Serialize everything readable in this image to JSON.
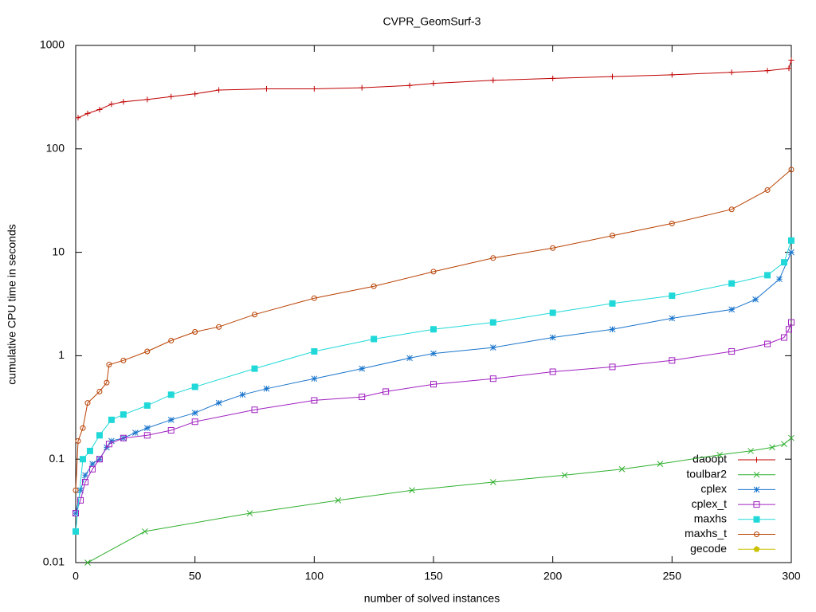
{
  "chart_data": {
    "type": "line",
    "title": "CVPR_GeomSurf-3",
    "xlabel": "number of solved instances",
    "ylabel": "cumulative CPU time in seconds",
    "xlim": [
      0,
      300
    ],
    "xticks": [
      0,
      50,
      100,
      150,
      200,
      250,
      300
    ],
    "ylim": [
      0.01,
      1000
    ],
    "yticks": [
      1000,
      100,
      10,
      1,
      0.1,
      0.01
    ],
    "log_y": true,
    "legend": "lower right",
    "series": [
      {
        "name": "daoopt",
        "color": "#c00000",
        "marker": "plus",
        "x": [
          1,
          5,
          10,
          15,
          20,
          30,
          40,
          50,
          60,
          80,
          100,
          120,
          140,
          150,
          175,
          200,
          225,
          250,
          275,
          290,
          299,
          300
        ],
        "values": [
          200,
          220,
          240,
          270,
          285,
          300,
          320,
          340,
          370,
          380,
          380,
          390,
          410,
          430,
          460,
          480,
          500,
          520,
          550,
          570,
          600,
          720
        ]
      },
      {
        "name": "toulbar2",
        "color": "#30b030",
        "marker": "cross",
        "x": [
          5,
          29,
          73,
          110,
          141,
          175,
          205,
          229,
          245,
          270,
          283,
          292,
          297,
          300
        ],
        "values": [
          0.01,
          0.02,
          0.03,
          0.04,
          0.05,
          0.06,
          0.07,
          0.08,
          0.09,
          0.11,
          0.12,
          0.13,
          0.14,
          0.16
        ]
      },
      {
        "name": "cplex",
        "color": "#1a75cc",
        "marker": "star",
        "x": [
          0,
          2,
          4,
          7,
          10,
          13,
          15,
          20,
          25,
          30,
          40,
          50,
          60,
          70,
          80,
          100,
          120,
          140,
          150,
          175,
          200,
          225,
          250,
          275,
          285,
          295,
          300
        ],
        "values": [
          0.03,
          0.05,
          0.07,
          0.09,
          0.1,
          0.13,
          0.15,
          0.16,
          0.18,
          0.2,
          0.24,
          0.28,
          0.35,
          0.42,
          0.48,
          0.6,
          0.75,
          0.95,
          1.05,
          1.2,
          1.5,
          1.8,
          2.3,
          2.8,
          3.5,
          5.5,
          10
        ]
      },
      {
        "name": "cplex_t",
        "color": "#a020c0",
        "marker": "square",
        "x": [
          0,
          2,
          4,
          7,
          10,
          14,
          20,
          30,
          40,
          50,
          75,
          100,
          120,
          130,
          150,
          175,
          200,
          225,
          250,
          275,
          290,
          297,
          299,
          300
        ],
        "values": [
          0.03,
          0.04,
          0.06,
          0.08,
          0.1,
          0.14,
          0.16,
          0.17,
          0.19,
          0.23,
          0.3,
          0.37,
          0.4,
          0.45,
          0.53,
          0.6,
          0.7,
          0.78,
          0.9,
          1.1,
          1.3,
          1.5,
          1.8,
          2.1
        ]
      },
      {
        "name": "maxhs",
        "color": "#20d8d8",
        "marker": "filled-square",
        "x": [
          0,
          3,
          6,
          10,
          15,
          20,
          30,
          40,
          50,
          75,
          100,
          125,
          150,
          175,
          200,
          225,
          250,
          275,
          290,
          297,
          300
        ],
        "values": [
          0.02,
          0.1,
          0.12,
          0.17,
          0.24,
          0.27,
          0.33,
          0.42,
          0.5,
          0.75,
          1.1,
          1.45,
          1.8,
          2.1,
          2.6,
          3.2,
          3.8,
          5,
          6,
          8,
          13
        ]
      },
      {
        "name": "maxhs_t",
        "color": "#b84000",
        "marker": "circle",
        "x": [
          0,
          1,
          3,
          5,
          10,
          13,
          14,
          20,
          30,
          40,
          50,
          60,
          75,
          100,
          125,
          150,
          175,
          200,
          225,
          250,
          275,
          290,
          300
        ],
        "values": [
          0.05,
          0.15,
          0.2,
          0.35,
          0.45,
          0.55,
          0.82,
          0.9,
          1.1,
          1.4,
          1.7,
          1.9,
          2.5,
          3.6,
          4.7,
          6.5,
          8.8,
          11,
          14.5,
          19,
          26,
          40,
          63
        ]
      },
      {
        "name": "gecode",
        "color": "#c8c000",
        "marker": "filled-pentagon",
        "x": [],
        "values": []
      }
    ]
  }
}
